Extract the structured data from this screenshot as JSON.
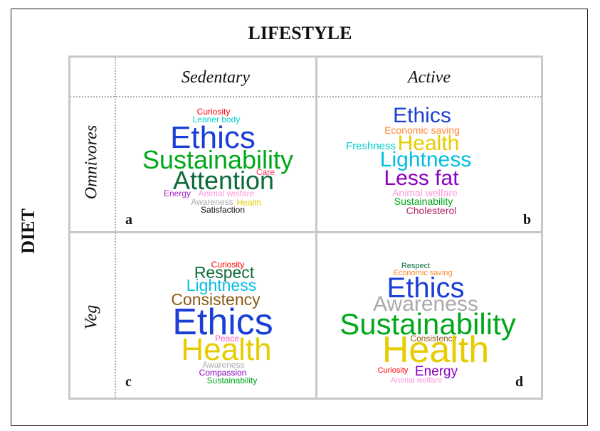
{
  "header": {
    "lifestyle": "LIFESTYLE",
    "diet": "DIET"
  },
  "columns": {
    "sedentary": "Sedentary",
    "active": "Active"
  },
  "rows": {
    "omnivores": "Omnivores",
    "veg": "Veg"
  },
  "panels": {
    "a": {
      "letter": "a",
      "words": [
        {
          "text": "Curiosity",
          "color": "#ff0000"
        },
        {
          "text": "Leaner body",
          "color": "#00cccc"
        },
        {
          "text": "Ethics",
          "color": "#1a3fd6"
        },
        {
          "text": "Sustainability",
          "color": "#00a81a"
        },
        {
          "text": "Care",
          "color": "#ff3366"
        },
        {
          "text": "Attention",
          "color": "#0b6b3a"
        },
        {
          "text": "Energy",
          "color": "#a020c0"
        },
        {
          "text": "Animal welfare",
          "color": "#ff99dd"
        },
        {
          "text": "Awareness",
          "color": "#aaaaaa"
        },
        {
          "text": "Health",
          "color": "#e6cc00"
        },
        {
          "text": "Satisfaction",
          "color": "#111111"
        }
      ]
    },
    "b": {
      "letter": "b",
      "words": [
        {
          "text": "Ethics",
          "color": "#1a3fd6"
        },
        {
          "text": "Economic saving",
          "color": "#ff8833"
        },
        {
          "text": "Freshness",
          "color": "#00cccc"
        },
        {
          "text": "Health",
          "color": "#e6cc00"
        },
        {
          "text": "Lightness",
          "color": "#00bfe0"
        },
        {
          "text": "Less fat",
          "color": "#8a00c0"
        },
        {
          "text": "Animal welfare",
          "color": "#ff99dd"
        },
        {
          "text": "Sustainability",
          "color": "#00a81a"
        },
        {
          "text": "Cholesterol",
          "color": "#b0246a"
        }
      ]
    },
    "c": {
      "letter": "c",
      "words": [
        {
          "text": "Curiosity",
          "color": "#ff0000"
        },
        {
          "text": "Respect",
          "color": "#0b6b3a"
        },
        {
          "text": "Lightness",
          "color": "#00bfe0"
        },
        {
          "text": "Consistency",
          "color": "#8b5a14"
        },
        {
          "text": "Ethics",
          "color": "#1a3fd6"
        },
        {
          "text": "Peace",
          "color": "#ff55cc"
        },
        {
          "text": "Health",
          "color": "#e6cc00"
        },
        {
          "text": "Awareness",
          "color": "#aaaaaa"
        },
        {
          "text": "Compassion",
          "color": "#8a00c0"
        },
        {
          "text": "Sustainability",
          "color": "#00a81a"
        }
      ]
    },
    "d": {
      "letter": "d",
      "words": [
        {
          "text": "Respect",
          "color": "#0b6b3a"
        },
        {
          "text": "Economic saving",
          "color": "#ff8833"
        },
        {
          "text": "Ethics",
          "color": "#1a3fd6"
        },
        {
          "text": "Awareness",
          "color": "#aaaaaa"
        },
        {
          "text": "Sustainability",
          "color": "#00a81a"
        },
        {
          "text": "Consistency",
          "color": "#8b5a14"
        },
        {
          "text": "Health",
          "color": "#e6cc00"
        },
        {
          "text": "Curiosity",
          "color": "#ff0000"
        },
        {
          "text": "Energy",
          "color": "#8a00c0"
        },
        {
          "text": "Animal welfare",
          "color": "#ff99dd"
        }
      ]
    }
  }
}
